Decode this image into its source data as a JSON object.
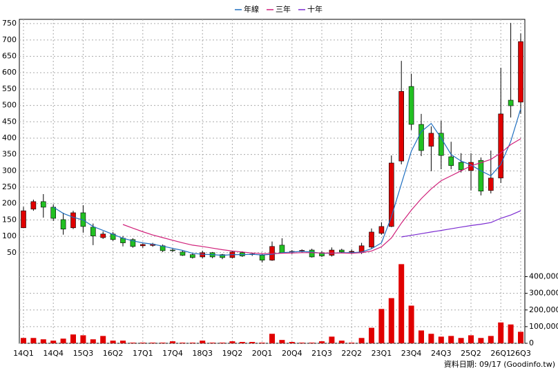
{
  "chart_data": {
    "type": "candlestick",
    "categories": [
      "14Q1",
      null,
      null,
      "14Q4",
      null,
      null,
      "15Q3",
      null,
      null,
      "16Q2",
      null,
      null,
      "17Q1",
      null,
      null,
      "17Q4",
      null,
      null,
      "18Q3",
      null,
      null,
      "19Q2",
      null,
      null,
      "20Q1",
      null,
      null,
      "20Q4",
      null,
      null,
      "21Q3",
      null,
      null,
      "22Q2",
      null,
      null,
      "23Q1",
      null,
      null,
      "23Q4",
      null,
      null,
      "24Q3",
      null,
      null,
      "25Q2",
      null,
      null,
      "26Q1",
      null,
      "26Q3"
    ],
    "open": [
      126,
      183,
      206,
      189,
      151,
      126,
      172,
      128,
      96,
      107,
      94,
      90,
      71,
      72,
      71,
      58,
      52,
      44,
      37,
      50,
      44,
      35,
      50,
      45,
      42,
      27,
      73,
      52,
      55,
      58,
      50,
      42,
      58,
      52,
      50,
      67,
      109,
      130,
      330,
      558,
      442,
      375,
      415,
      343,
      326,
      301,
      332,
      240,
      278,
      516,
      510
    ],
    "high": [
      190,
      212,
      229,
      198,
      172,
      178,
      195,
      139,
      115,
      113,
      101,
      94,
      78,
      80,
      75,
      62,
      56,
      47,
      56,
      52,
      46,
      56,
      54,
      50,
      46,
      84,
      94,
      58,
      60,
      62,
      55,
      66,
      62,
      60,
      80,
      124,
      143,
      347,
      636,
      597,
      474,
      436,
      453,
      389,
      354,
      354,
      341,
      362,
      615,
      752,
      720
    ],
    "low": [
      125,
      178,
      157,
      147,
      105,
      122,
      111,
      73,
      92,
      86,
      69,
      65,
      65,
      68,
      52,
      52,
      40,
      32,
      33,
      33,
      30,
      33,
      37,
      40,
      20,
      25,
      48,
      46,
      50,
      35,
      37,
      38,
      48,
      46,
      46,
      62,
      105,
      128,
      320,
      425,
      345,
      299,
      305,
      305,
      295,
      240,
      225,
      231,
      263,
      463,
      474
    ],
    "close": [
      178,
      206,
      189,
      155,
      122,
      172,
      130,
      101,
      107,
      90,
      80,
      69,
      75,
      76,
      56,
      56,
      42,
      35,
      50,
      37,
      35,
      52,
      40,
      46,
      27,
      69,
      50,
      54,
      57,
      37,
      40,
      58,
      52,
      54,
      71,
      113,
      130,
      324,
      543,
      442,
      362,
      415,
      347,
      316,
      303,
      326,
      238,
      278,
      474,
      499,
      695
    ],
    "volume": [
      32000,
      32000,
      24000,
      16000,
      28000,
      53000,
      48000,
      24000,
      44000,
      16000,
      16000,
      4000,
      4000,
      4000,
      4000,
      12000,
      4000,
      4000,
      16000,
      4000,
      4000,
      12000,
      8000,
      8000,
      4000,
      57000,
      20000,
      8000,
      4000,
      4000,
      12000,
      40000,
      16000,
      4000,
      32000,
      93000,
      206000,
      271000,
      475000,
      226000,
      77000,
      57000,
      40000,
      44000,
      32000,
      48000,
      32000,
      44000,
      125000,
      113000,
      69000
    ],
    "up_color": "#e00000",
    "down_color": "#22c022",
    "volume_color": "#e00000",
    "series": [
      {
        "name": "年線",
        "color": "#1f6fc0",
        "values": [
          null,
          null,
          null,
          189,
          170,
          158,
          150,
          130,
          118,
          106,
          94,
          86,
          80,
          76,
          70,
          63,
          57,
          48,
          45,
          44,
          42,
          44,
          44,
          45,
          43,
          45,
          50,
          52,
          54,
          52,
          48,
          48,
          50,
          50,
          52,
          62,
          80,
          160,
          260,
          360,
          420,
          445,
          400,
          350,
          330,
          318,
          300,
          285,
          320,
          390,
          490
        ]
      },
      {
        "name": "三年",
        "color": "#d0207a",
        "values": [
          null,
          null,
          null,
          null,
          null,
          null,
          null,
          null,
          null,
          null,
          136,
          125,
          114,
          104,
          96,
          88,
          80,
          73,
          69,
          64,
          59,
          55,
          52,
          49,
          47,
          47,
          48,
          49,
          50,
          50,
          49,
          49,
          49,
          48,
          50,
          55,
          68,
          95,
          140,
          180,
          215,
          245,
          270,
          285,
          300,
          315,
          325,
          335,
          355,
          380,
          398
        ]
      },
      {
        "name": "十年",
        "color": "#7a2ad0",
        "values": [
          null,
          null,
          null,
          null,
          null,
          null,
          null,
          null,
          null,
          null,
          null,
          null,
          null,
          null,
          null,
          null,
          null,
          null,
          null,
          null,
          null,
          null,
          null,
          null,
          null,
          null,
          null,
          null,
          null,
          null,
          null,
          null,
          null,
          null,
          null,
          null,
          null,
          null,
          98,
          103,
          108,
          113,
          118,
          123,
          128,
          133,
          137,
          142,
          155,
          165,
          178
        ]
      }
    ],
    "ylim": [
      20,
      763
    ],
    "yticks": [
      50,
      100,
      150,
      200,
      250,
      300,
      350,
      400,
      450,
      500,
      550,
      600,
      650,
      700,
      750
    ],
    "y2lim": [
      0,
      485000
    ],
    "y2ticks": [
      0,
      {
        "value": 100000,
        "label": "100,000"
      },
      {
        "value": 200000,
        "label": "200,000"
      },
      {
        "value": 300000,
        "label": "300,000"
      },
      {
        "value": 400000,
        "label": "400,000"
      }
    ],
    "grid": true,
    "footer": "資料日期: 09/17 (Goodinfo.tw)"
  }
}
